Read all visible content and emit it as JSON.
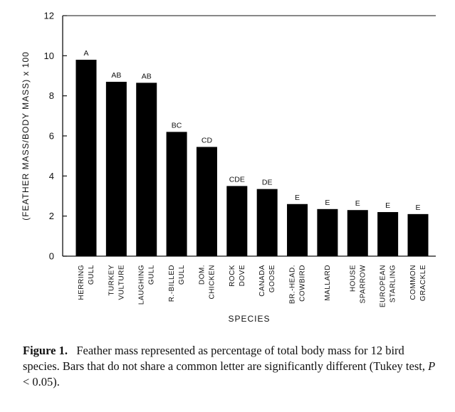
{
  "chart_data": {
    "type": "bar",
    "categories": [
      [
        "HERRING",
        "GULL"
      ],
      [
        "TURKEY",
        "VULTURE"
      ],
      [
        "LAUGHING",
        "GULL"
      ],
      [
        "R.-BILLED",
        "GULL"
      ],
      [
        "DOM.",
        "CHICKEN"
      ],
      [
        "ROCK",
        "DOVE"
      ],
      [
        "CANADA",
        "GOOSE"
      ],
      [
        "BR.-HEAD.",
        "COWBIRD"
      ],
      [
        "MALLARD"
      ],
      [
        "HOUSE",
        "SPARROW"
      ],
      [
        "EUROPEAN",
        "STARLING"
      ],
      [
        "COMMON",
        "GRACKLE"
      ]
    ],
    "values": [
      9.8,
      8.7,
      8.65,
      6.2,
      5.45,
      3.5,
      3.35,
      2.6,
      2.35,
      2.3,
      2.2,
      2.1
    ],
    "significance_letters": [
      "A",
      "AB",
      "AB",
      "BC",
      "CD",
      "CDE",
      "DE",
      "E",
      "E",
      "E",
      "E",
      "E"
    ],
    "xlabel": "SPECIES",
    "ylabel": "(FEATHER MASS/BODY MASS) x 100",
    "ylim": [
      0,
      12
    ],
    "yticks": [
      0,
      2,
      4,
      6,
      8,
      10,
      12
    ],
    "bar_color": "#000000",
    "grid": false
  },
  "caption": {
    "label": "Figure 1.",
    "text_before_p": "Feather mass represented as percentage of total body mass for 12 bird species. Bars that do not share a common letter are significantly different (Tukey test, ",
    "p_symbol": "P",
    "text_after_p": " < 0.05)."
  }
}
